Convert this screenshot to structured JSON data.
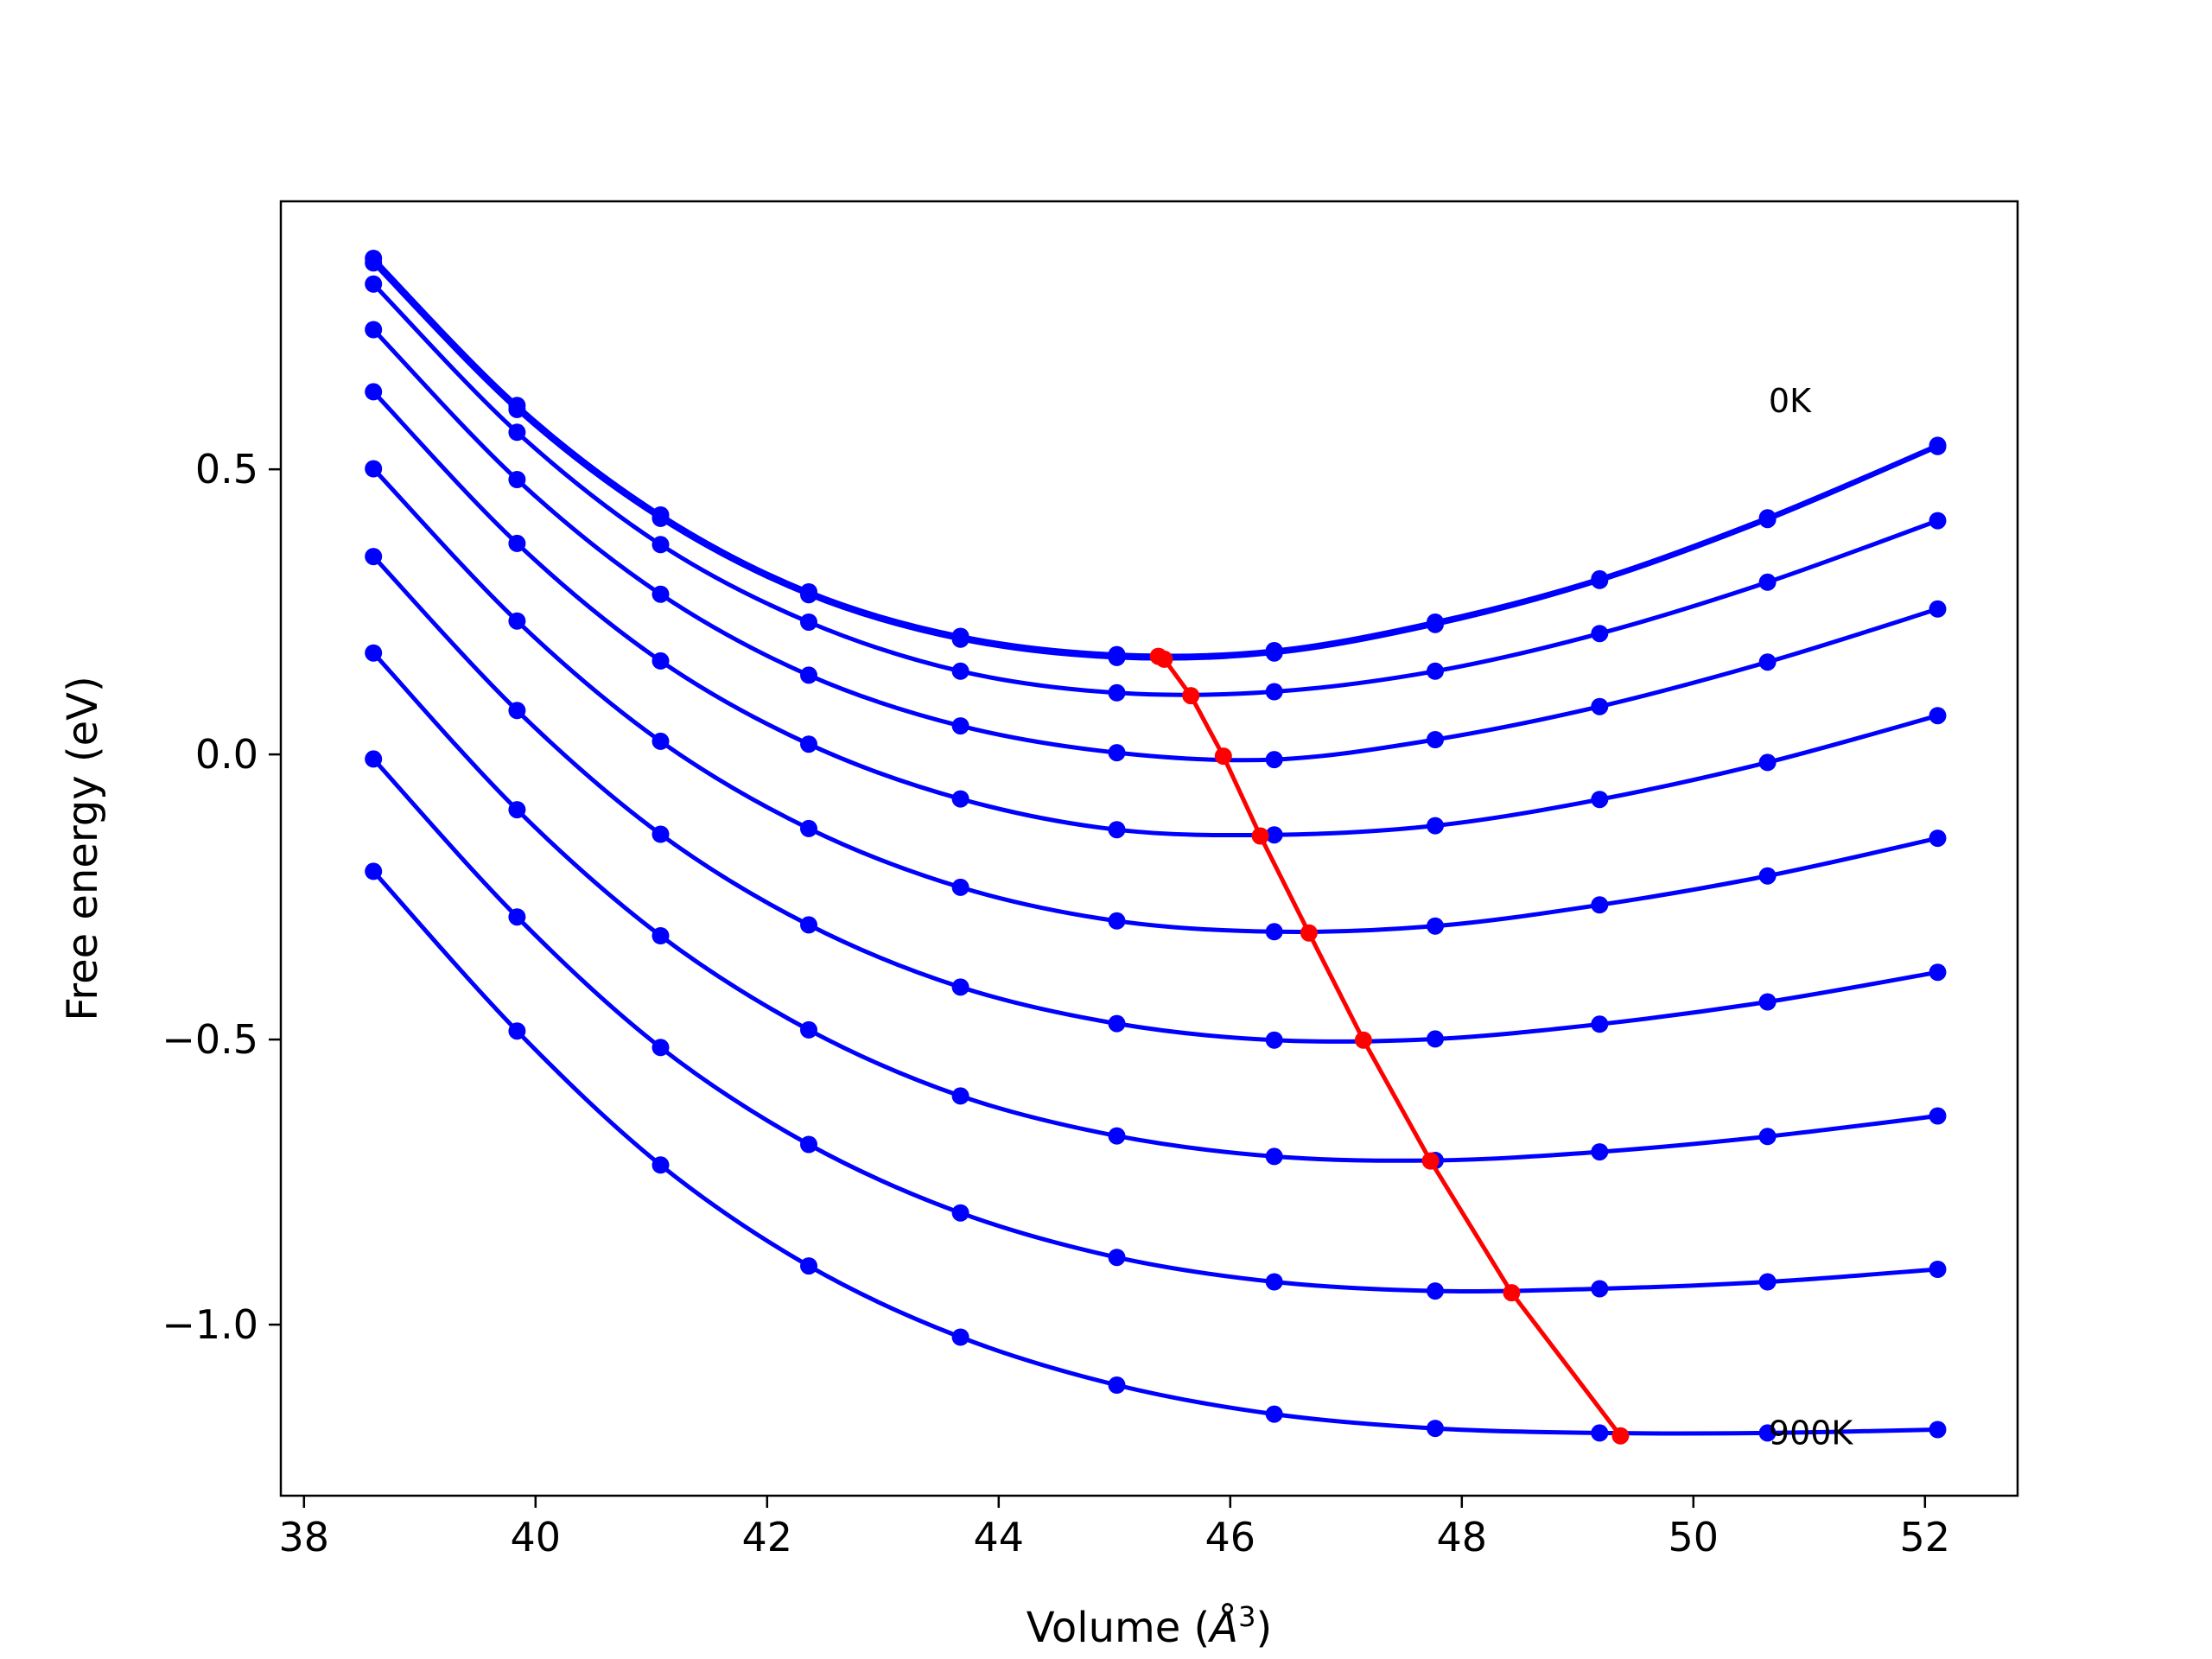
{
  "chart_data": {
    "type": "line",
    "title": "",
    "xlabel": "Volume",
    "xlabel_unit_base": "Å",
    "xlabel_unit_exp": "3",
    "ylabel": "Free energy (eV)",
    "xlim": [
      37.8,
      52.8
    ],
    "ylim": [
      -1.3,
      0.97
    ],
    "xticks": [
      38,
      40,
      42,
      44,
      46,
      48,
      50,
      52
    ],
    "xtick_labels": [
      "38",
      "40",
      "42",
      "44",
      "46",
      "48",
      "50",
      "52"
    ],
    "yticks": [
      0.5,
      0.0,
      -0.5,
      -1.0
    ],
    "ytick_labels": [
      "0.5",
      "0.0",
      "−0.5",
      "−1.0"
    ],
    "grid": false,
    "legend": "none",
    "annotations": [
      {
        "text": "0K",
        "x": 50.65,
        "y": 0.6
      },
      {
        "text": "900K",
        "x": 50.65,
        "y": -1.21
      }
    ],
    "x": [
      38.6,
      39.84,
      41.08,
      42.36,
      43.67,
      45.02,
      46.38,
      47.77,
      49.19,
      50.64,
      52.11
    ],
    "colors": {
      "isotherm": "#0000ff",
      "minimum_path": "#ff0000"
    },
    "series": [
      {
        "values": [
          0.87,
          0.612,
          0.42,
          0.285,
          0.207,
          0.175,
          0.182,
          0.232,
          0.308,
          0.415,
          0.542
        ]
      },
      {
        "values": [
          0.862,
          0.605,
          0.414,
          0.28,
          0.202,
          0.17,
          0.178,
          0.228,
          0.305,
          0.412,
          0.54
        ]
      },
      {
        "values": [
          0.825,
          0.565,
          0.368,
          0.232,
          0.146,
          0.108,
          0.11,
          0.146,
          0.212,
          0.302,
          0.41
        ]
      },
      {
        "values": [
          0.745,
          0.482,
          0.281,
          0.139,
          0.05,
          0.003,
          -0.009,
          0.026,
          0.084,
          0.162,
          0.255
        ]
      },
      {
        "values": [
          0.636,
          0.37,
          0.164,
          0.018,
          -0.078,
          -0.132,
          -0.141,
          -0.125,
          -0.079,
          -0.014,
          0.068
        ]
      },
      {
        "values": [
          0.501,
          0.234,
          0.023,
          -0.13,
          -0.233,
          -0.292,
          -0.311,
          -0.301,
          -0.264,
          -0.213,
          -0.147
        ]
      },
      {
        "values": [
          0.347,
          0.077,
          -0.14,
          -0.299,
          -0.408,
          -0.472,
          -0.501,
          -0.499,
          -0.473,
          -0.434,
          -0.382
        ]
      },
      {
        "values": [
          0.178,
          -0.097,
          -0.318,
          -0.483,
          -0.599,
          -0.669,
          -0.705,
          -0.712,
          -0.697,
          -0.67,
          -0.634
        ]
      },
      {
        "values": [
          -0.008,
          -0.285,
          -0.514,
          -0.684,
          -0.804,
          -0.882,
          -0.925,
          -0.941,
          -0.937,
          -0.925,
          -0.903
        ]
      },
      {
        "values": [
          -0.205,
          -0.485,
          -0.72,
          -0.897,
          -1.022,
          -1.106,
          -1.157,
          -1.182,
          -1.19,
          -1.19,
          -1.184
        ]
      }
    ],
    "minimum_path": {
      "x": [
        45.38,
        45.43,
        45.66,
        45.94,
        46.26,
        46.68,
        47.15,
        47.73,
        48.43,
        49.37
      ],
      "y": [
        0.172,
        0.167,
        0.103,
        -0.003,
        -0.143,
        -0.313,
        -0.501,
        -0.713,
        -0.944,
        -1.195
      ]
    }
  }
}
